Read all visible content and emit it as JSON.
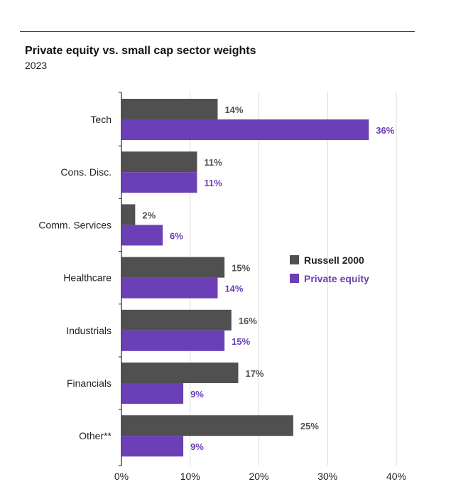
{
  "title": "Private equity vs. small cap sector weights",
  "subtitle": "2023",
  "chart_data": {
    "type": "bar",
    "orientation": "horizontal",
    "categories": [
      "Tech",
      "Cons. Disc.",
      "Comm. Services",
      "Healthcare",
      "Industrials",
      "Financials",
      "Other**"
    ],
    "series": [
      {
        "name": "Russell 2000",
        "values": [
          14,
          11,
          2,
          15,
          16,
          17,
          25
        ],
        "labels": [
          "14%",
          "11%",
          "2%",
          "15%",
          "16%",
          "17%",
          "25%"
        ],
        "color": "#505050",
        "label_color": "#505050"
      },
      {
        "name": "Private equity",
        "values": [
          36,
          11,
          6,
          14,
          15,
          9,
          9
        ],
        "labels": [
          "36%",
          "11%",
          "6%",
          "14%",
          "15%",
          "9%",
          "9%"
        ],
        "color": "#6b3fb5",
        "label_color": "#6b3fb5"
      }
    ],
    "xlim": [
      0,
      40
    ],
    "x_ticks": [
      "0%",
      "10%",
      "20%",
      "30%",
      "40%"
    ],
    "grid": true,
    "legend_position": "right-middle"
  }
}
